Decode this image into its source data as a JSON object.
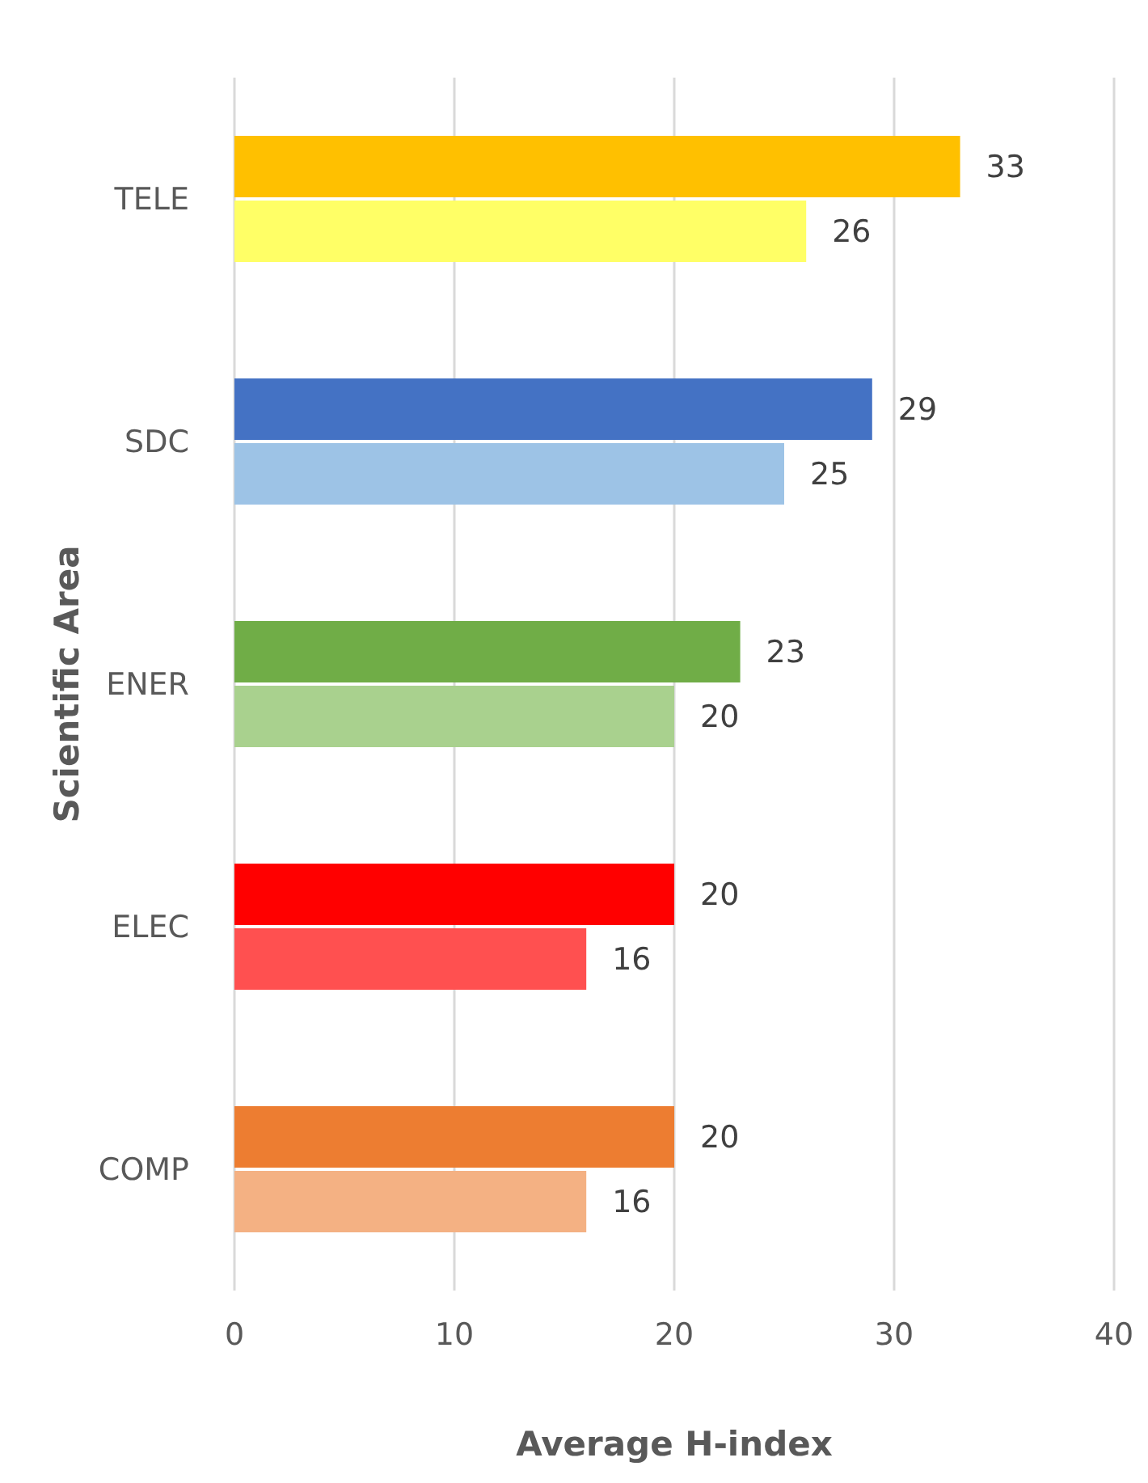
{
  "chart_data": {
    "type": "bar",
    "orientation": "horizontal",
    "xlabel": "Average H-index",
    "ylabel": "Scientific Area",
    "categories": [
      "TELE",
      "SDC",
      "ENER",
      "ELEC",
      "COMP"
    ],
    "series": [
      {
        "colors": [
          "#ffc000",
          "#4472c4",
          "#70ad47",
          "#ff0000",
          "#ed7d31"
        ],
        "values": [
          33,
          29,
          23,
          20,
          20
        ]
      },
      {
        "colors": [
          "#ffff66",
          "#9dc3e6",
          "#a9d18e",
          "#ff5050",
          "#f4b183"
        ],
        "values": [
          26,
          25,
          20,
          16,
          16
        ]
      }
    ],
    "xlim": [
      0,
      40
    ],
    "xticks": [
      0,
      10,
      20,
      30,
      40
    ],
    "grid": "x",
    "data_labels": true,
    "legend": false
  }
}
